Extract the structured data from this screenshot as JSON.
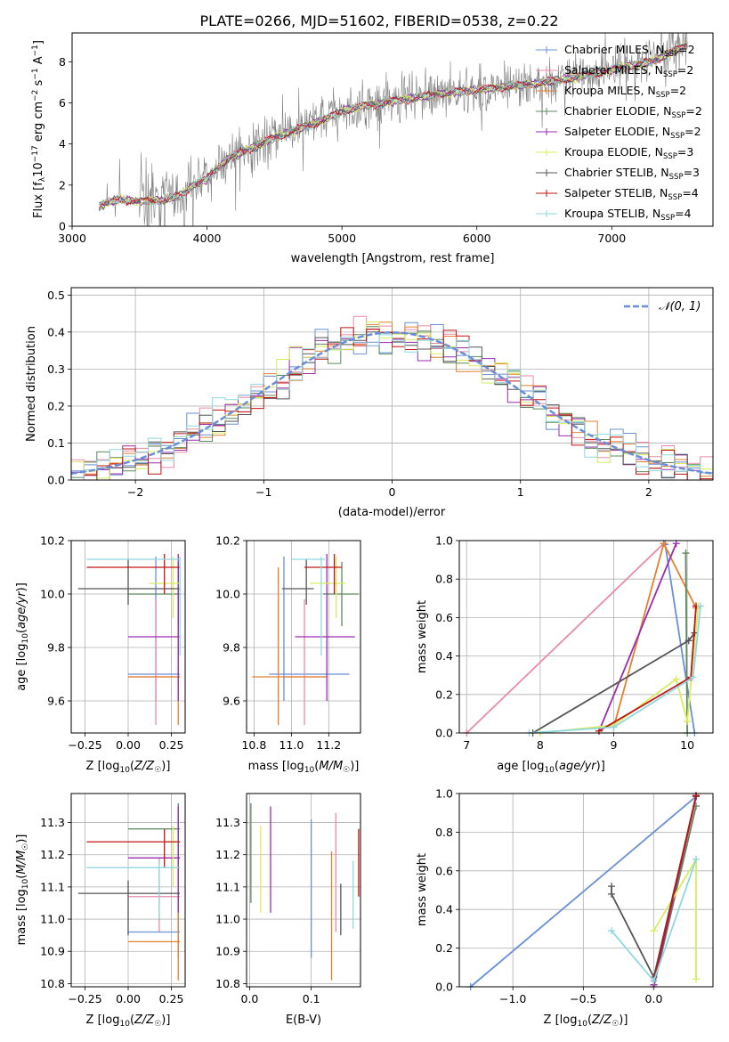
{
  "title": "PLATE=0266, MJD=51602, FIBERID=0538, z=0.22",
  "colors": {
    "Chabrier MILES": "#6b8fd6",
    "Salpeter MILES": "#e88ba8",
    "Kroupa MILES": "#e3802e",
    "Chabrier ELODIE": "#5e8a5e",
    "Salpeter ELODIE": "#9a2bb0",
    "Kroupa ELODIE": "#d8ec5e",
    "Chabrier STELIB": "#555555",
    "Salpeter STELIB": "#c21414",
    "Kroupa STELIB": "#8fd8e0"
  },
  "chart_data": [
    {
      "type": "line",
      "xlabel": "wavelength [Angstrom, rest frame]",
      "ylabel": "Flux [f_λ 10^-17 erg cm^-2 s^-1 A^-1]",
      "xlim": [
        3000,
        7750
      ],
      "ylim": [
        0,
        9.4
      ],
      "xticks": [
        3000,
        4000,
        5000,
        6000,
        7000
      ],
      "yticks": [
        0,
        2,
        4,
        6,
        8
      ],
      "legend_position": "top-right",
      "legend": [
        {
          "model": "Chabrier MILES",
          "n": "2"
        },
        {
          "model": "Salpeter MILES",
          "n": "2"
        },
        {
          "model": "Kroupa MILES",
          "n": "2"
        },
        {
          "model": "Chabrier ELODIE",
          "n": "2"
        },
        {
          "model": "Salpeter ELODIE",
          "n": "2"
        },
        {
          "model": "Kroupa ELODIE",
          "n": "3"
        },
        {
          "model": "Chabrier STELIB",
          "n": "3"
        },
        {
          "model": "Salpeter STELIB",
          "n": "4"
        },
        {
          "model": "Kroupa STELIB",
          "n": "4"
        }
      ],
      "continuum": [
        [
          3200,
          1.0
        ],
        [
          3350,
          1.3
        ],
        [
          3500,
          1.2
        ],
        [
          3700,
          1.3
        ],
        [
          3800,
          1.5
        ],
        [
          3900,
          2.0
        ],
        [
          4000,
          2.3
        ],
        [
          4150,
          3.3
        ],
        [
          4300,
          3.7
        ],
        [
          4500,
          4.3
        ],
        [
          4800,
          5.0
        ],
        [
          5000,
          5.6
        ],
        [
          5200,
          5.9
        ],
        [
          5500,
          6.2
        ],
        [
          5800,
          6.5
        ],
        [
          6100,
          6.7
        ],
        [
          6400,
          6.9
        ],
        [
          6700,
          7.2
        ],
        [
          7000,
          7.6
        ],
        [
          7300,
          8.0
        ],
        [
          7550,
          8.8
        ]
      ]
    },
    {
      "type": "histogram",
      "xlabel": "(data-model)/error",
      "ylabel": "Normed distribution",
      "xlim": [
        -2.5,
        2.5
      ],
      "ylim": [
        0,
        0.52
      ],
      "xticks": [
        -2,
        -1,
        0,
        1,
        2
      ],
      "yticks": [
        0.0,
        0.1,
        0.2,
        0.3,
        0.4,
        0.5
      ],
      "reference_curve": "𝒩(0, 1)",
      "bin_width": 0.1
    },
    {
      "type": "errorbar",
      "xlabel": "Z [log₁₀(Z/Z☉)]",
      "ylabel": "age  [log₁₀(age/yr)]",
      "xlim": [
        -0.33,
        0.33
      ],
      "ylim": [
        9.48,
        10.2
      ],
      "xticks": [
        -0.25,
        0.0,
        0.25
      ],
      "yticks": [
        9.6,
        9.8,
        10.0,
        10.2
      ],
      "points": [
        {
          "model": "Chabrier MILES",
          "x": 0.16,
          "xlo": 0.0,
          "xhi": 0.3,
          "y": 9.7,
          "ylo": 9.6,
          "yhi": 10.14
        },
        {
          "model": "Salpeter MILES",
          "x": 0.16,
          "xlo": 0.0,
          "xhi": 0.3,
          "y": 9.69,
          "ylo": 9.51,
          "yhi": 9.98
        },
        {
          "model": "Kroupa MILES",
          "x": 0.29,
          "xlo": 0.0,
          "xhi": 0.3,
          "y": 9.69,
          "ylo": 9.51,
          "yhi": 10.1
        },
        {
          "model": "Chabrier ELODIE",
          "x": 0.29,
          "xlo": 0.0,
          "xhi": 0.3,
          "y": 10.0,
          "ylo": 9.88,
          "yhi": 10.12
        },
        {
          "model": "Salpeter ELODIE",
          "x": 0.29,
          "xlo": 0.0,
          "xhi": 0.3,
          "y": 9.84,
          "ylo": 9.6,
          "yhi": 10.15
        },
        {
          "model": "Kroupa ELODIE",
          "x": 0.26,
          "xlo": 0.12,
          "xhi": 0.3,
          "y": 10.04,
          "ylo": 9.91,
          "yhi": 10.14
        },
        {
          "model": "Chabrier STELIB",
          "x": 0.0,
          "xlo": -0.29,
          "xhi": 0.3,
          "y": 10.02,
          "ylo": 9.96,
          "yhi": 10.13
        },
        {
          "model": "Salpeter STELIB",
          "x": 0.21,
          "xlo": -0.24,
          "xhi": 0.3,
          "y": 10.1,
          "ylo": 10.0,
          "yhi": 10.15
        },
        {
          "model": "Kroupa STELIB",
          "x": 0.3,
          "xlo": -0.24,
          "xhi": 0.3,
          "y": 10.13,
          "ylo": 9.77,
          "yhi": 10.14
        }
      ]
    },
    {
      "type": "errorbar",
      "xlabel": "mass [log₁₀(M/M☉)]",
      "xlim": [
        10.76,
        11.37
      ],
      "ylim": [
        9.48,
        10.2
      ],
      "xticks": [
        10.8,
        11.0,
        11.2
      ],
      "yticks": [
        9.6,
        9.8,
        10.0,
        10.2
      ],
      "points": [
        {
          "model": "Chabrier MILES",
          "x": 10.96,
          "xlo": 10.88,
          "xhi": 11.31,
          "y": 9.7,
          "ylo": 9.6,
          "yhi": 10.14
        },
        {
          "model": "Salpeter MILES",
          "x": 11.07,
          "xlo": 10.96,
          "xhi": 11.19,
          "y": 9.69,
          "ylo": 9.51,
          "yhi": 9.98
        },
        {
          "model": "Kroupa MILES",
          "x": 10.93,
          "xlo": 10.79,
          "xhi": 11.19,
          "y": 9.69,
          "ylo": 9.51,
          "yhi": 10.1
        },
        {
          "model": "Chabrier ELODIE",
          "x": 11.27,
          "xlo": 11.17,
          "xhi": 11.36,
          "y": 10.0,
          "ylo": 9.88,
          "yhi": 10.12
        },
        {
          "model": "Salpeter ELODIE",
          "x": 11.19,
          "xlo": 11.02,
          "xhi": 11.34,
          "y": 9.84,
          "ylo": 9.6,
          "yhi": 10.15
        },
        {
          "model": "Kroupa ELODIE",
          "x": 11.24,
          "xlo": 11.1,
          "xhi": 11.29,
          "y": 10.04,
          "ylo": 9.91,
          "yhi": 10.14
        },
        {
          "model": "Chabrier STELIB",
          "x": 11.08,
          "xlo": 10.95,
          "xhi": 11.12,
          "y": 10.02,
          "ylo": 9.96,
          "yhi": 10.13
        },
        {
          "model": "Salpeter STELIB",
          "x": 11.23,
          "xlo": 11.07,
          "xhi": 11.27,
          "y": 10.1,
          "ylo": 10.0,
          "yhi": 10.15
        },
        {
          "model": "Kroupa STELIB",
          "x": 11.16,
          "xlo": 11.0,
          "xhi": 11.18,
          "y": 10.13,
          "ylo": 9.77,
          "yhi": 10.14
        }
      ]
    },
    {
      "type": "line",
      "xlabel": "age  [log₁₀(age/yr)]",
      "ylabel": "mass weight",
      "xlim": [
        6.9,
        10.35
      ],
      "ylim": [
        0.0,
        1.0
      ],
      "xticks": [
        7,
        8,
        9,
        10
      ],
      "yticks": [
        0.0,
        0.2,
        0.4,
        0.6,
        0.8,
        1.0
      ],
      "series": [
        {
          "model": "Salpeter MILES",
          "points": [
            [
              7.0,
              0.0
            ],
            [
              9.68,
              0.985
            ]
          ]
        },
        {
          "model": "Chabrier MILES",
          "points": [
            [
              9.7,
              0.98
            ],
            [
              10.1,
              0.0
            ]
          ]
        },
        {
          "model": "Kroupa MILES",
          "points": [
            [
              9.0,
              0.03
            ],
            [
              9.68,
              0.985
            ],
            [
              10.12,
              0.65
            ]
          ]
        },
        {
          "model": "Salpeter ELODIE",
          "points": [
            [
              8.8,
              0.01
            ],
            [
              9.85,
              0.985
            ]
          ]
        },
        {
          "model": "Chabrier ELODIE",
          "points": [
            [
              9.98,
              0.935
            ],
            [
              10.0,
              0.0
            ]
          ]
        },
        {
          "model": "Kroupa ELODIE",
          "points": [
            [
              8.0,
              0.0
            ],
            [
              9.0,
              0.04
            ],
            [
              9.85,
              0.28
            ],
            [
              10.0,
              0.06
            ],
            [
              10.15,
              0.66
            ]
          ]
        },
        {
          "model": "Chabrier STELIB",
          "points": [
            [
              7.9,
              0.0
            ],
            [
              10.02,
              0.48
            ],
            [
              10.1,
              0.52
            ]
          ]
        },
        {
          "model": "Salpeter STELIB",
          "points": [
            [
              8.8,
              0.01
            ],
            [
              10.05,
              0.29
            ],
            [
              10.12,
              0.66
            ]
          ]
        },
        {
          "model": "Kroupa STELIB",
          "points": [
            [
              7.85,
              0.0
            ],
            [
              9.0,
              0.03
            ],
            [
              10.08,
              0.29
            ],
            [
              10.18,
              0.66
            ]
          ]
        }
      ]
    },
    {
      "type": "errorbar",
      "xlabel": "Z [log₁₀(Z/Z☉)]",
      "ylabel": "mass [log₁₀(M/M☉)]",
      "xlim": [
        -0.33,
        0.33
      ],
      "ylim": [
        10.79,
        11.39
      ],
      "xticks": [
        -0.25,
        0.0,
        0.25
      ],
      "yticks": [
        10.8,
        10.9,
        11.0,
        11.1,
        11.2,
        11.3
      ],
      "points": [
        {
          "model": "Chabrier MILES",
          "x": 0.29,
          "xlo": 0.0,
          "xhi": 0.3,
          "y": 10.96,
          "ylo": 10.88,
          "yhi": 11.31
        },
        {
          "model": "Salpeter MILES",
          "x": 0.18,
          "xlo": 0.0,
          "xhi": 0.3,
          "y": 11.07,
          "ylo": 10.96,
          "yhi": 11.19
        },
        {
          "model": "Kroupa MILES",
          "x": 0.29,
          "xlo": 0.0,
          "xhi": 0.3,
          "y": 10.93,
          "ylo": 10.81,
          "yhi": 11.19
        },
        {
          "model": "Chabrier ELODIE",
          "x": 0.29,
          "xlo": 0.0,
          "xhi": 0.3,
          "y": 11.28,
          "ylo": 11.17,
          "yhi": 11.36
        },
        {
          "model": "Salpeter ELODIE",
          "x": 0.29,
          "xlo": 0.0,
          "xhi": 0.3,
          "y": 11.19,
          "ylo": 11.02,
          "yhi": 11.35
        },
        {
          "model": "Kroupa ELODIE",
          "x": 0.26,
          "xlo": 0.22,
          "xhi": 0.3,
          "y": 11.24,
          "ylo": 11.1,
          "yhi": 11.29
        },
        {
          "model": "Chabrier STELIB",
          "x": 0.0,
          "xlo": -0.29,
          "xhi": 0.3,
          "y": 11.08,
          "ylo": 10.95,
          "yhi": 11.12
        },
        {
          "model": "Salpeter STELIB",
          "x": 0.21,
          "xlo": -0.24,
          "xhi": 0.3,
          "y": 11.24,
          "ylo": 11.16,
          "yhi": 11.28
        },
        {
          "model": "Kroupa STELIB",
          "x": 0.18,
          "xlo": -0.24,
          "xhi": 0.3,
          "y": 11.16,
          "ylo": 11.0,
          "yhi": 11.18
        }
      ]
    },
    {
      "type": "errorbar",
      "xlabel": "E(B-V)",
      "xlim": [
        -0.005,
        0.18
      ],
      "ylim": [
        10.79,
        11.39
      ],
      "xticks": [
        0.0,
        0.1
      ],
      "yticks": [
        10.8,
        10.9,
        11.0,
        11.1,
        11.2,
        11.3
      ],
      "points": [
        {
          "model": "Chabrier MILES",
          "x": 0.1,
          "y": 11.09,
          "ylo": 10.88,
          "yhi": 11.31
        },
        {
          "model": "Salpeter MILES",
          "x": 0.14,
          "y": 11.07,
          "ylo": 10.96,
          "yhi": 11.33
        },
        {
          "model": "Kroupa MILES",
          "x": 0.133,
          "y": 11.0,
          "ylo": 10.81,
          "yhi": 11.21
        },
        {
          "model": "Chabrier ELODIE",
          "x": 0.002,
          "y": 11.2,
          "ylo": 11.05,
          "yhi": 11.36
        },
        {
          "model": "Salpeter ELODIE",
          "x": 0.034,
          "y": 11.2,
          "ylo": 11.02,
          "yhi": 11.35
        },
        {
          "model": "Kroupa ELODIE",
          "x": 0.018,
          "y": 11.15,
          "ylo": 11.02,
          "yhi": 11.29
        },
        {
          "model": "Chabrier STELIB",
          "x": 0.148,
          "y": 11.03,
          "ylo": 10.95,
          "yhi": 11.11
        },
        {
          "model": "Salpeter STELIB",
          "x": 0.177,
          "y": 11.18,
          "ylo": 11.07,
          "yhi": 11.28
        },
        {
          "model": "Kroupa STELIB",
          "x": 0.168,
          "y": 11.09,
          "ylo": 10.97,
          "yhi": 11.18
        }
      ]
    },
    {
      "type": "line",
      "xlabel": "Z [log₁₀(Z/Z☉)]",
      "ylabel": "mass weight",
      "xlim": [
        -1.38,
        0.42
      ],
      "ylim": [
        0.0,
        1.0
      ],
      "xticks": [
        -1.0,
        -0.5,
        0.0
      ],
      "yticks": [
        0.0,
        0.2,
        0.4,
        0.6,
        0.8,
        1.0
      ],
      "series": [
        {
          "model": "Chabrier MILES",
          "points": [
            [
              -1.3,
              0.0
            ],
            [
              0.3,
              0.985
            ]
          ]
        },
        {
          "model": "Salpeter MILES",
          "points": [
            [
              0.0,
              0.01
            ],
            [
              0.3,
              0.985
            ]
          ]
        },
        {
          "model": "Kroupa MILES",
          "points": [
            [
              0.0,
              0.01
            ],
            [
              0.3,
              0.985
            ]
          ]
        },
        {
          "model": "Chabrier ELODIE",
          "points": [
            [
              0.0,
              0.0
            ],
            [
              0.3,
              0.935
            ]
          ]
        },
        {
          "model": "Salpeter ELODIE",
          "points": [
            [
              0.0,
              0.01
            ],
            [
              0.3,
              0.985
            ]
          ]
        },
        {
          "model": "Kroupa ELODIE",
          "points": [
            [
              0.0,
              0.29
            ],
            [
              0.3,
              0.66
            ],
            [
              0.3,
              0.04
            ]
          ]
        },
        {
          "model": "Chabrier STELIB",
          "points": [
            [
              -0.3,
              0.52
            ],
            [
              -0.3,
              0.48
            ],
            [
              0.0,
              0.05
            ],
            [
              0.3,
              0.985
            ]
          ]
        },
        {
          "model": "Salpeter STELIB",
          "points": [
            [
              0.0,
              0.03
            ],
            [
              0.3,
              0.99
            ]
          ]
        },
        {
          "model": "Kroupa STELIB",
          "points": [
            [
              -0.3,
              0.29
            ],
            [
              0.0,
              0.03
            ],
            [
              0.3,
              0.66
            ]
          ]
        }
      ]
    }
  ]
}
